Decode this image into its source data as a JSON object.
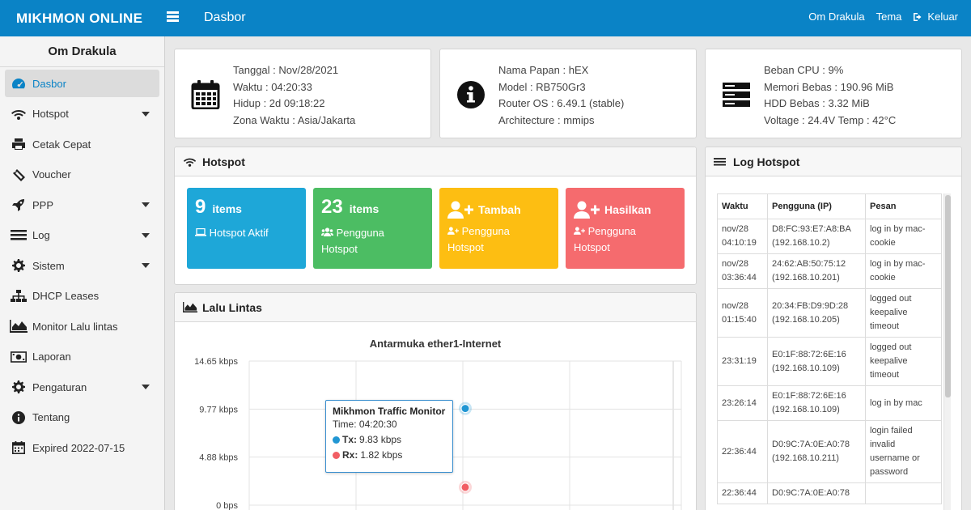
{
  "topbar": {
    "brand": "MIKHMON ONLINE",
    "page_title": "Dasbor",
    "user": "Om Drakula",
    "theme": "Tema",
    "logout": "Keluar",
    "color": "#0a83c6"
  },
  "sidebar": {
    "user": "Om Drakula",
    "items": [
      {
        "label": "Dasbor",
        "icon": "dashboard-icon"
      },
      {
        "label": "Hotspot",
        "icon": "wifi-icon"
      },
      {
        "label": "Cetak Cepat",
        "icon": "printer-icon"
      },
      {
        "label": "Voucher",
        "icon": "ticket-icon"
      },
      {
        "label": "PPP",
        "icon": "rocket-icon"
      },
      {
        "label": "Log",
        "icon": "list-icon"
      },
      {
        "label": "Sistem",
        "icon": "gear-icon"
      },
      {
        "label": "DHCP Leases",
        "icon": "sitemap-icon"
      },
      {
        "label": "Monitor Lalu lintas",
        "icon": "area-chart-icon"
      },
      {
        "label": "Laporan",
        "icon": "money-icon"
      },
      {
        "label": "Pengaturan",
        "icon": "gear-icon"
      },
      {
        "label": "Tentang",
        "icon": "info-icon"
      },
      {
        "label": "Expired 2022-07-15",
        "icon": "calendar-icon"
      }
    ]
  },
  "info_time": {
    "lines": [
      "Tanggal : Nov/28/2021",
      "Waktu : 04:20:33",
      "Hidup : 2d 09:18:22",
      "Zona Waktu : Asia/Jakarta"
    ]
  },
  "info_board": {
    "lines": [
      "Nama Papan : hEX",
      "Model : RB750Gr3",
      "Router OS : 6.49.1 (stable)",
      "Architecture : mmips"
    ]
  },
  "info_resource": {
    "lines": [
      "Beban CPU : 9%",
      "Memori Bebas : 190.96 MiB",
      "HDD Bebas : 3.32 MiB",
      "Voltage : 24.4V Temp : 42°C"
    ]
  },
  "hotspot_panel": {
    "title": "Hotspot",
    "tiles": [
      {
        "number": "9",
        "unit": "items",
        "line1": "Hotspot Aktif",
        "color": "#1ea7d8"
      },
      {
        "number": "23",
        "unit": "items",
        "line1": "Pengguna",
        "line2": "Hotspot",
        "color": "#4cbd63"
      },
      {
        "title": "Tambah",
        "line1": "Pengguna",
        "line2": "Hotspot",
        "color": "#fdbe12"
      },
      {
        "title": "Hasilkan",
        "line1": "Pengguna",
        "line2": "Hotspot",
        "color": "#f56b6e"
      }
    ]
  },
  "traffic_panel": {
    "title": "Lalu Lintas"
  },
  "chart_data": {
    "type": "line",
    "title": "Antarmuka ether1-Internet",
    "y_ticks": [
      "14.65 kbps",
      "9.77 kbps",
      "4.88 kbps",
      "0 bps"
    ],
    "ylim": [
      0,
      14.65
    ],
    "series": [
      {
        "name": "Tx",
        "values": [
          9.83
        ],
        "color": "#2196d3"
      },
      {
        "name": "Rx",
        "values": [
          1.82
        ],
        "color": "#f15e64"
      }
    ],
    "tooltip": {
      "title": "Mikhmon Traffic Monitor",
      "time": "Time: 04:20:30",
      "tx": "9.83 kbps",
      "rx": "1.82 kbps",
      "tx_label": "Tx:",
      "rx_label": "Rx:"
    }
  },
  "log_panel": {
    "title": "Log Hotspot",
    "headers": [
      "Waktu",
      "Pengguna (IP)",
      "Pesan"
    ],
    "rows": [
      {
        "time": [
          "nov/28",
          "04:10:19"
        ],
        "user": [
          "D8:FC:93:E7:A8:BA",
          "(192.168.10.2)"
        ],
        "msg": [
          "log in by mac-",
          "cookie"
        ]
      },
      {
        "time": [
          "nov/28",
          "03:36:44"
        ],
        "user": [
          "24:62:AB:50:75:12",
          "(192.168.10.201)"
        ],
        "msg": [
          "log in by mac-",
          "cookie"
        ]
      },
      {
        "time": [
          "nov/28",
          "01:15:40"
        ],
        "user": [
          "20:34:FB:D9:9D:28",
          "(192.168.10.205)"
        ],
        "msg": [
          "logged out",
          "keepalive",
          "timeout"
        ]
      },
      {
        "time": [
          "23:31:19"
        ],
        "user": [
          "E0:1F:88:72:6E:16",
          "(192.168.10.109)"
        ],
        "msg": [
          "logged out",
          "keepalive",
          "timeout"
        ]
      },
      {
        "time": [
          "23:26:14"
        ],
        "user": [
          "E0:1F:88:72:6E:16",
          "(192.168.10.109)"
        ],
        "msg": [
          "log in by mac"
        ]
      },
      {
        "time": [
          "22:36:44"
        ],
        "user": [
          "D0:9C:7A:0E:A0:78",
          "(192.168.10.211)"
        ],
        "msg": [
          "login failed",
          "invalid",
          "username or",
          "password"
        ]
      },
      {
        "time": [
          "22:36:44"
        ],
        "user": [
          "D0:9C:7A:0E:A0:78",
          ""
        ],
        "msg": [
          ""
        ]
      }
    ]
  }
}
